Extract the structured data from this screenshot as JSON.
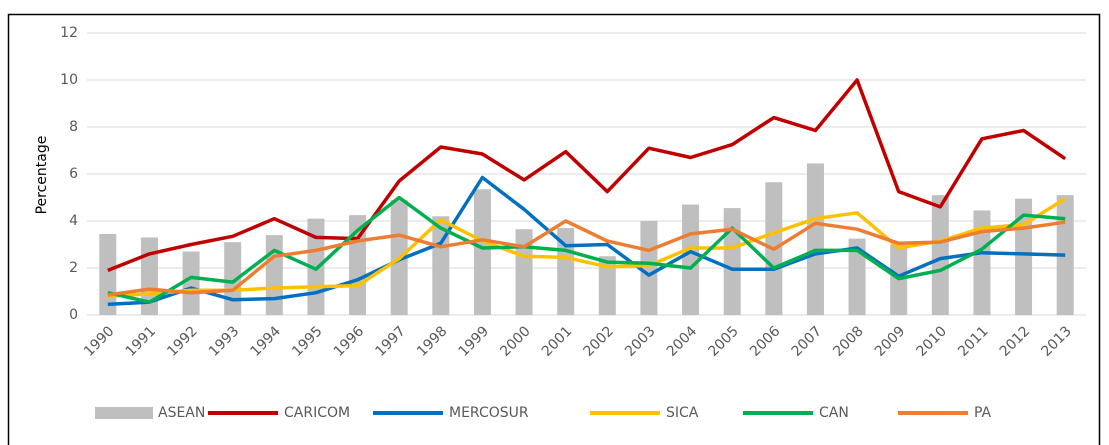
{
  "chart_data": {
    "type": "combo",
    "y_label": "Percentage",
    "categories": [
      "1990",
      "1991",
      "1992",
      "1993",
      "1994",
      "1995",
      "1996",
      "1997",
      "1998",
      "1999",
      "2000",
      "2001",
      "2002",
      "2003",
      "2004",
      "2005",
      "2006",
      "2007",
      "2008",
      "2009",
      "2010",
      "2011",
      "2012",
      "2013"
    ],
    "ylim": [
      0,
      12
    ],
    "yticks": [
      0,
      2,
      4,
      6,
      8,
      10,
      12
    ],
    "grid": true,
    "legend": "bottom",
    "series": [
      {
        "name": "ASEAN",
        "type": "bar",
        "color": "#bfbfbf",
        "values": [
          3.45,
          3.3,
          2.7,
          3.1,
          3.4,
          4.1,
          4.25,
          4.9,
          4.2,
          5.35,
          3.65,
          3.7,
          2.5,
          4.0,
          4.7,
          4.55,
          5.65,
          6.45,
          3.25,
          3.0,
          5.1,
          4.45,
          4.95,
          5.1
        ]
      },
      {
        "name": "CARICOM",
        "type": "line",
        "color": "#c00000",
        "values": [
          1.9,
          2.6,
          3.0,
          3.35,
          4.1,
          3.3,
          3.25,
          5.7,
          7.15,
          6.85,
          5.75,
          6.95,
          5.25,
          7.1,
          6.7,
          7.25,
          8.4,
          7.85,
          10.0,
          5.25,
          4.6,
          7.5,
          7.85,
          6.65
        ]
      },
      {
        "name": "MERCOSUR",
        "type": "line",
        "color": "#0070c0",
        "values": [
          0.45,
          0.55,
          1.15,
          0.65,
          0.7,
          0.95,
          1.5,
          2.35,
          3.05,
          5.85,
          4.5,
          2.95,
          3.0,
          1.7,
          2.7,
          1.95,
          1.95,
          2.6,
          2.85,
          1.65,
          2.4,
          2.65,
          2.6,
          2.55
        ]
      },
      {
        "name": "SICA",
        "type": "line",
        "color": "#ffc000",
        "values": [
          0.8,
          0.9,
          1.05,
          1.05,
          1.15,
          1.2,
          1.25,
          2.4,
          4.05,
          3.15,
          2.5,
          2.45,
          2.05,
          2.1,
          2.85,
          2.85,
          3.5,
          4.1,
          4.35,
          2.85,
          3.15,
          3.7,
          3.85,
          4.95
        ]
      },
      {
        "name": "CAN",
        "type": "line",
        "color": "#00b050",
        "values": [
          0.95,
          0.55,
          1.6,
          1.4,
          2.75,
          1.95,
          3.6,
          5.0,
          3.7,
          2.85,
          2.9,
          2.75,
          2.25,
          2.2,
          2.0,
          3.7,
          2.0,
          2.75,
          2.75,
          1.55,
          1.9,
          2.8,
          4.25,
          4.1
        ]
      },
      {
        "name": "PA",
        "type": "line",
        "color": "#ed7d31",
        "values": [
          0.85,
          1.1,
          0.95,
          1.05,
          2.5,
          2.75,
          3.15,
          3.4,
          2.9,
          3.2,
          2.9,
          4.0,
          3.15,
          2.75,
          3.45,
          3.65,
          2.8,
          3.9,
          3.65,
          3.05,
          3.1,
          3.55,
          3.7,
          3.95
        ]
      }
    ]
  }
}
